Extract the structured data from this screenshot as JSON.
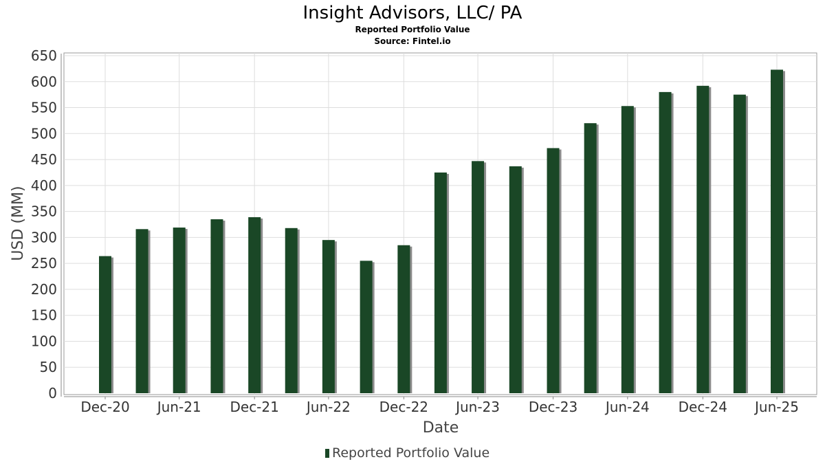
{
  "chart_data": {
    "type": "bar",
    "title": "Insight Advisors, LLC/ PA",
    "subtitle": "Reported Portfolio Value",
    "source": "Source: Fintel.io",
    "xlabel": "Date",
    "ylabel": "USD (MM)",
    "ylim": [
      0,
      650
    ],
    "yticks": [
      0,
      50,
      100,
      150,
      200,
      250,
      300,
      350,
      400,
      450,
      500,
      550,
      600,
      650
    ],
    "xticks": [
      "Dec-20",
      "Jun-21",
      "Dec-21",
      "Jun-22",
      "Dec-22",
      "Jun-23",
      "Dec-23",
      "Jun-24",
      "Dec-24",
      "Jun-25"
    ],
    "categories": [
      "2020-12-31",
      "2021-03-31",
      "2021-06-30",
      "2021-09-30",
      "2021-12-31",
      "2022-03-31",
      "2022-06-30",
      "2022-09-30",
      "2022-12-31",
      "2023-03-31",
      "2023-06-30",
      "2023-09-30",
      "2023-12-31",
      "2024-03-31",
      "2024-06-30",
      "2024-09-30",
      "2024-12-31",
      "2025-03-31",
      "2025-06-30"
    ],
    "series": [
      {
        "name": "Reported Portfolio Value",
        "color": "#1a4726",
        "values": [
          264,
          316,
          319,
          335,
          339,
          318,
          295,
          255,
          285,
          425,
          447,
          437,
          472,
          520,
          553,
          580,
          592,
          575,
          623
        ]
      }
    ],
    "grid": true,
    "legend": "bottom"
  }
}
